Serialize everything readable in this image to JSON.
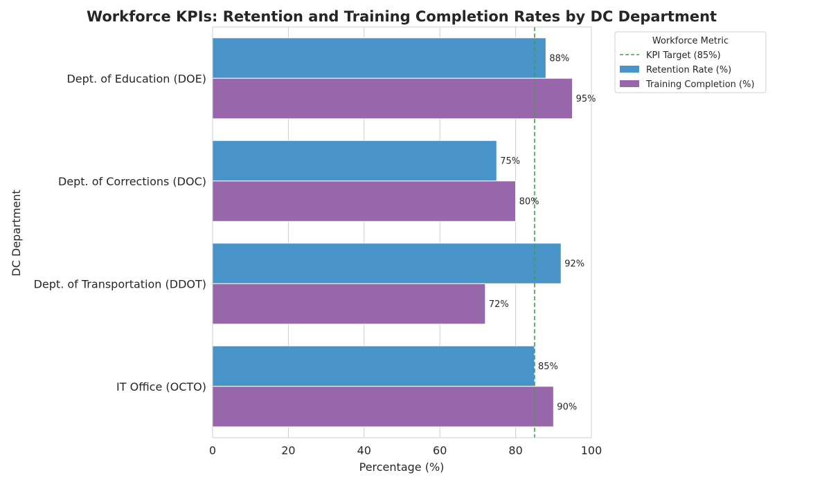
{
  "chart_data": {
    "type": "bar",
    "orientation": "horizontal",
    "title": "Workforce KPIs: Retention and Training Completion Rates by DC Department",
    "xlabel": "Percentage (%)",
    "ylabel": "DC Department",
    "xlim": [
      0,
      100
    ],
    "xticks": [
      0,
      20,
      40,
      60,
      80,
      100
    ],
    "grid": true,
    "categories": [
      "Dept. of Education (DOE)",
      "Dept. of Corrections (DOC)",
      "Dept. of Transportation (DDOT)",
      "IT Office (OCTO)"
    ],
    "series": [
      {
        "name": "Retention Rate (%)",
        "color": "#4894c8",
        "values": [
          88,
          75,
          92,
          85
        ]
      },
      {
        "name": "Training Completion (%)",
        "color": "#9866aa",
        "values": [
          95,
          80,
          72,
          90
        ]
      }
    ],
    "data_label_suffix": "%",
    "reference_line": {
      "name": "KPI Target (85%)",
      "value": 85,
      "color": "#3aa14a",
      "style": "dashed"
    },
    "legend": {
      "title": "Workforce Metric",
      "placement": "upper-right-outside"
    }
  }
}
